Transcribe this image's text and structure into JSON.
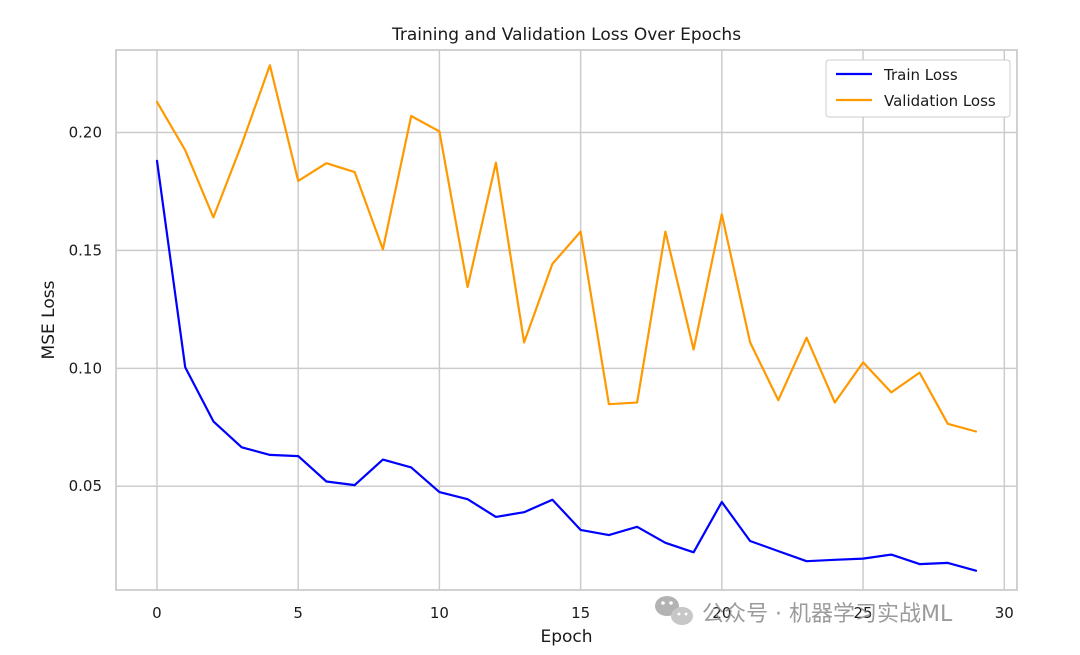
{
  "chart_data": {
    "type": "line",
    "title": "Training and Validation Loss Over Epochs",
    "xlabel": "Epoch",
    "ylabel": "MSE Loss",
    "xlim": [
      -1.45,
      30.45
    ],
    "ylim": [
      0.006,
      0.235
    ],
    "xticks": [
      0,
      5,
      10,
      15,
      20,
      25,
      30
    ],
    "yticks": [
      0.05,
      0.1,
      0.15,
      0.2
    ],
    "ytick_labels": [
      "0.05",
      "0.10",
      "0.15",
      "0.20"
    ],
    "grid": true,
    "legend_position": "top-right",
    "x": [
      0,
      1,
      2,
      3,
      4,
      5,
      6,
      7,
      8,
      9,
      10,
      11,
      12,
      13,
      14,
      15,
      16,
      17,
      18,
      19,
      20,
      21,
      22,
      23,
      24,
      25,
      26,
      27,
      28,
      29
    ],
    "series": [
      {
        "name": "Train Loss",
        "color": "#0000ff",
        "values": [
          0.188,
          0.1005,
          0.0775,
          0.0665,
          0.0633,
          0.0628,
          0.052,
          0.0505,
          0.0613,
          0.058,
          0.0475,
          0.0445,
          0.037,
          0.039,
          0.0443,
          0.0315,
          0.0293,
          0.0328,
          0.026,
          0.022,
          0.0433,
          0.0268,
          0.0225,
          0.0182,
          0.0188,
          0.0193,
          0.021,
          0.017,
          0.0175,
          0.0142
        ]
      },
      {
        "name": "Validation Loss",
        "color": "#ff9900",
        "values": [
          0.213,
          0.1925,
          0.164,
          0.195,
          0.2285,
          0.1795,
          0.187,
          0.1832,
          0.1505,
          0.207,
          0.2005,
          0.1345,
          0.1872,
          0.111,
          0.1443,
          0.158,
          0.0848,
          0.0855,
          0.158,
          0.108,
          0.1653,
          0.111,
          0.0865,
          0.113,
          0.0855,
          0.1025,
          0.0898,
          0.0982,
          0.0765,
          0.0732
        ]
      }
    ]
  },
  "watermark": {
    "text": "公众号 · 机器学习实战ML",
    "icon": "wechat-icon"
  }
}
